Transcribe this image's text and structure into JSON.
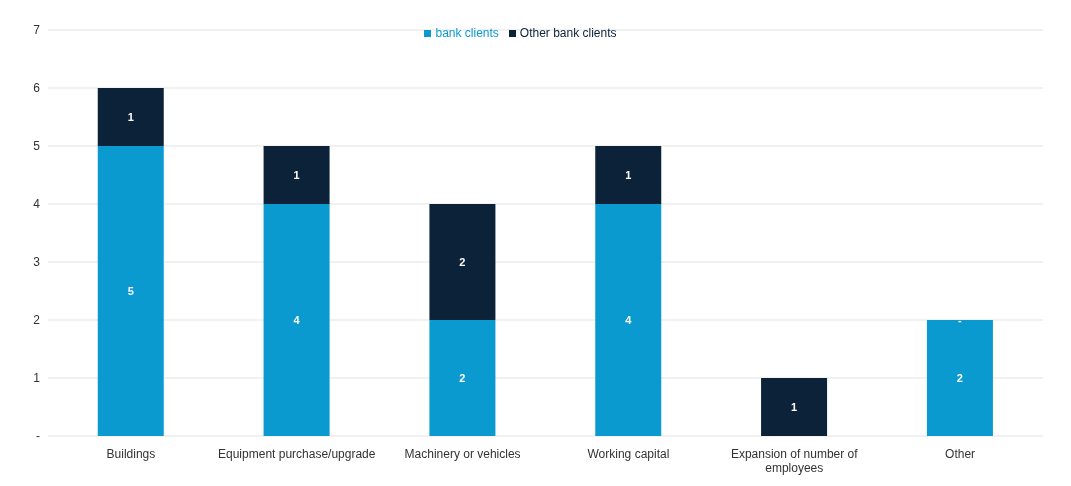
{
  "chart_data": {
    "type": "bar",
    "stacked": true,
    "categories": [
      "Buildings",
      "Equipment purchase/upgrade",
      "Machinery or vehicles",
      "Working capital",
      "Expansion of number of employees",
      "Other"
    ],
    "series": [
      {
        "name": "bank clients",
        "color": "#0a9ad0",
        "values": [
          5,
          4,
          2,
          4,
          0,
          2
        ],
        "value_labels": [
          "5",
          "4",
          "2",
          "4",
          null,
          "2"
        ]
      },
      {
        "name": "Other bank clients",
        "color": "#0b2239",
        "values": [
          1,
          1,
          2,
          1,
          1,
          0
        ],
        "value_labels": [
          "1",
          "1",
          "2",
          "1",
          "1",
          "-"
        ]
      }
    ],
    "ylim": [
      0,
      7
    ],
    "yticks": [
      {
        "value": 0,
        "label": "-"
      },
      1,
      2,
      3,
      4,
      5,
      6,
      7
    ],
    "grid": "y",
    "legend": "top"
  }
}
